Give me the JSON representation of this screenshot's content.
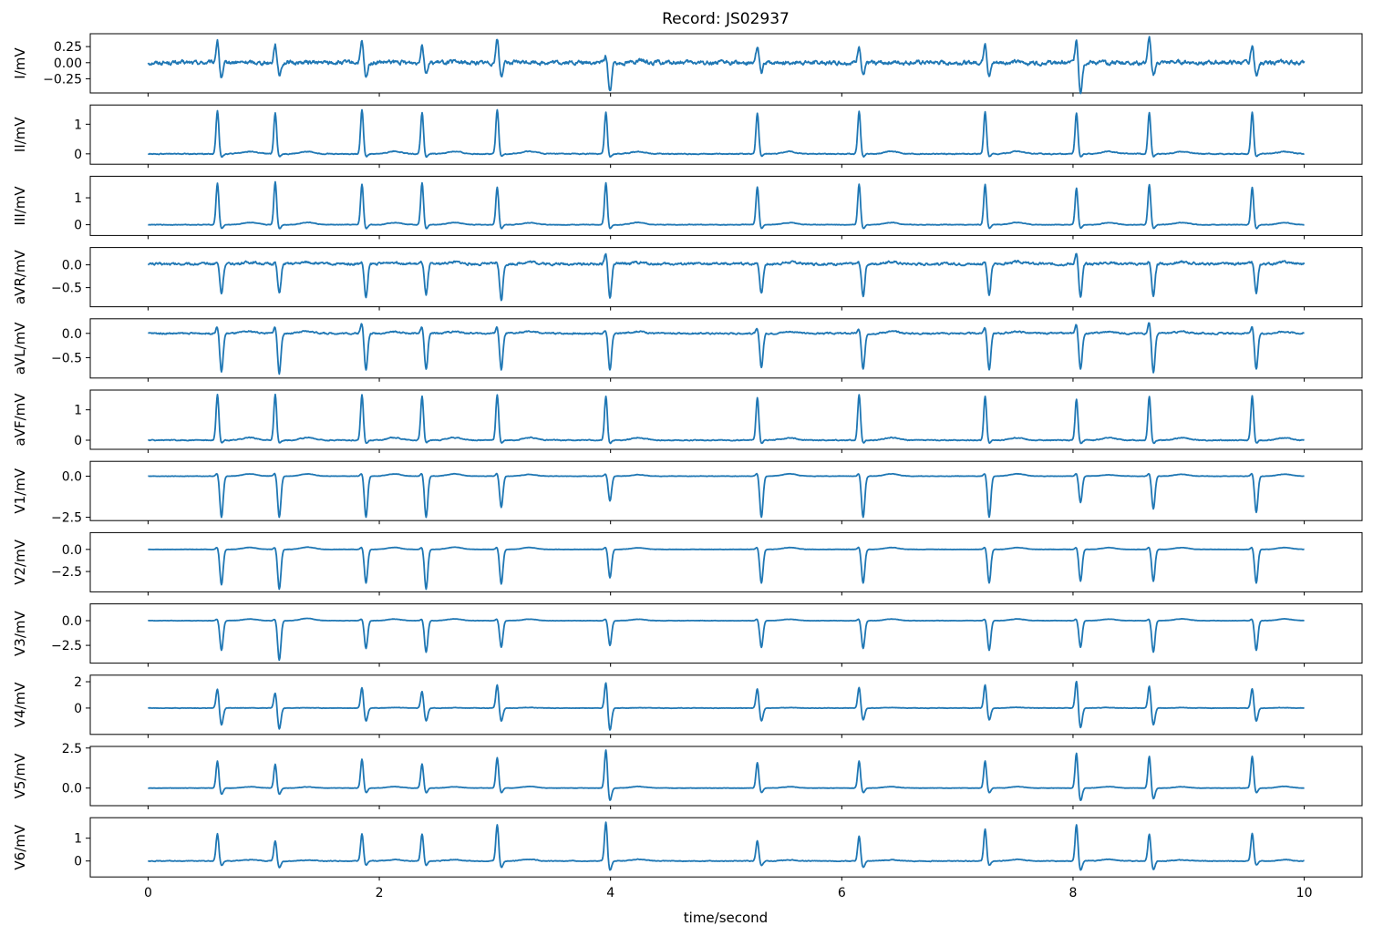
{
  "title": "Record: JS02937",
  "xlabel": "time/second",
  "xticks": [
    0,
    2,
    4,
    6,
    8,
    10
  ],
  "xlim": [
    -0.5,
    10.5
  ],
  "line_color": "#1f77b4",
  "beats": [
    0.6,
    1.1,
    1.85,
    2.37,
    3.02,
    3.96,
    5.27,
    6.15,
    7.24,
    8.03,
    8.66,
    9.55
  ],
  "chart_data": {
    "type": "line",
    "x_range": [
      0,
      10
    ],
    "sampling_note": "12-lead ECG",
    "series": [
      {
        "name": "I/mV",
        "ylabel": "I/mV",
        "ylim": [
          -0.47,
          0.45
        ],
        "yticks": [
          0.25,
          0.0,
          -0.25
        ],
        "ytick_labels": [
          "0.25",
          "0.00",
          "−0.25"
        ],
        "baseline": 0.0,
        "noise": 0.06,
        "peaks": [
          0.35,
          0.3,
          0.33,
          0.3,
          0.38,
          0.12,
          0.25,
          0.28,
          0.33,
          0.38,
          0.4,
          0.28
        ],
        "troughs": [
          -0.25,
          -0.2,
          -0.25,
          -0.15,
          -0.2,
          -0.45,
          -0.15,
          -0.2,
          -0.22,
          -0.45,
          -0.2,
          -0.2
        ]
      },
      {
        "name": "II/mV",
        "ylabel": "II/mV",
        "ylim": [
          -0.35,
          1.65
        ],
        "yticks": [
          1,
          0
        ],
        "ytick_labels": [
          "1",
          "0"
        ],
        "baseline": 0.0,
        "noise": 0.03,
        "peaks": [
          1.45,
          1.4,
          1.5,
          1.4,
          1.5,
          1.4,
          1.38,
          1.45,
          1.42,
          1.38,
          1.4,
          1.42
        ],
        "troughs": [
          -0.1,
          -0.1,
          -0.1,
          -0.1,
          -0.1,
          -0.1,
          -0.1,
          -0.1,
          -0.1,
          -0.1,
          -0.1,
          -0.1
        ]
      },
      {
        "name": "III/mV",
        "ylabel": "III/mV",
        "ylim": [
          -0.4,
          1.8
        ],
        "yticks": [
          1,
          0
        ],
        "ytick_labels": [
          "1",
          "0"
        ],
        "baseline": 0.0,
        "noise": 0.02,
        "peaks": [
          1.55,
          1.6,
          1.5,
          1.55,
          1.4,
          1.55,
          1.4,
          1.5,
          1.5,
          1.35,
          1.5,
          1.4
        ],
        "troughs": [
          -0.15,
          -0.15,
          -0.15,
          -0.15,
          -0.15,
          -0.15,
          -0.15,
          -0.15,
          -0.15,
          -0.15,
          -0.15,
          -0.15
        ]
      },
      {
        "name": "aVR/mV",
        "ylabel": "aVR/mV",
        "ylim": [
          -0.92,
          0.38
        ],
        "yticks": [
          0.0,
          -0.5
        ],
        "ytick_labels": [
          "0.0",
          "−0.5"
        ],
        "baseline": 0.02,
        "noise": 0.05,
        "peaks": [
          0.05,
          0.05,
          0.05,
          0.05,
          0.05,
          0.25,
          0.05,
          0.05,
          0.05,
          0.25,
          0.05,
          0.05
        ],
        "troughs": [
          -0.65,
          -0.65,
          -0.75,
          -0.7,
          -0.8,
          -0.75,
          -0.65,
          -0.7,
          -0.7,
          -0.75,
          -0.7,
          -0.65
        ]
      },
      {
        "name": "aVL/mV",
        "ylabel": "aVL/mV",
        "ylim": [
          -0.92,
          0.3
        ],
        "yticks": [
          0.0,
          -0.5
        ],
        "ytick_labels": [
          "0.0",
          "−0.5"
        ],
        "baseline": 0.0,
        "noise": 0.03,
        "peaks": [
          0.15,
          0.15,
          0.22,
          0.15,
          0.15,
          0.05,
          0.1,
          0.1,
          0.15,
          0.2,
          0.25,
          0.15
        ],
        "troughs": [
          -0.8,
          -0.82,
          -0.75,
          -0.75,
          -0.75,
          -0.75,
          -0.7,
          -0.75,
          -0.75,
          -0.75,
          -0.82,
          -0.75
        ]
      },
      {
        "name": "aVF/mV",
        "ylabel": "aVF/mV",
        "ylim": [
          -0.3,
          1.65
        ],
        "yticks": [
          1,
          0
        ],
        "ytick_labels": [
          "1",
          "0"
        ],
        "baseline": 0.0,
        "noise": 0.03,
        "peaks": [
          1.5,
          1.5,
          1.5,
          1.45,
          1.5,
          1.45,
          1.4,
          1.5,
          1.45,
          1.35,
          1.45,
          1.45
        ],
        "troughs": [
          -0.1,
          -0.1,
          -0.1,
          -0.1,
          -0.1,
          -0.1,
          -0.1,
          -0.1,
          -0.1,
          -0.1,
          -0.1,
          -0.1
        ]
      },
      {
        "name": "V1/mV",
        "ylabel": "V1/mV",
        "ylim": [
          -2.7,
          0.9
        ],
        "yticks": [
          0.0,
          -2.5
        ],
        "ytick_labels": [
          "0.0",
          "−2.5"
        ],
        "baseline": 0.0,
        "noise": 0.02,
        "peaks": [
          0.2,
          0.2,
          0.2,
          0.2,
          0.2,
          0.15,
          0.2,
          0.2,
          0.2,
          0.2,
          0.2,
          0.2
        ],
        "troughs": [
          -2.5,
          -2.5,
          -2.5,
          -2.5,
          -1.9,
          -1.5,
          -2.5,
          -2.5,
          -2.5,
          -1.6,
          -2.0,
          -2.2
        ]
      },
      {
        "name": "V2/mV",
        "ylabel": "V2/mV",
        "ylim": [
          -4.8,
          1.9
        ],
        "yticks": [
          0.0,
          -2.5
        ],
        "ytick_labels": [
          "0.0",
          "−2.5"
        ],
        "baseline": 0.0,
        "noise": 0.03,
        "peaks": [
          0.3,
          0.3,
          0.3,
          0.3,
          0.3,
          0.3,
          0.3,
          0.3,
          0.3,
          0.3,
          0.3,
          0.3
        ],
        "troughs": [
          -4.0,
          -4.5,
          -3.8,
          -4.5,
          -3.9,
          -3.2,
          -3.8,
          -3.8,
          -3.8,
          -3.6,
          -3.6,
          -3.8
        ]
      },
      {
        "name": "V3/mV",
        "ylabel": "V3/mV",
        "ylim": [
          -4.3,
          1.7
        ],
        "yticks": [
          0.0,
          -2.5
        ],
        "ytick_labels": [
          "0.0",
          "−2.5"
        ],
        "baseline": 0.0,
        "noise": 0.03,
        "peaks": [
          0.2,
          0.2,
          0.2,
          0.2,
          0.2,
          0.2,
          0.2,
          0.2,
          0.2,
          0.2,
          0.2,
          0.2
        ],
        "troughs": [
          -3.0,
          -4.0,
          -2.8,
          -3.2,
          -2.7,
          -2.5,
          -2.7,
          -2.8,
          -3.0,
          -2.7,
          -3.2,
          -3.0
        ]
      },
      {
        "name": "V4/mV",
        "ylabel": "V4/mV",
        "ylim": [
          -2.0,
          2.5
        ],
        "yticks": [
          2,
          0
        ],
        "ytick_labels": [
          "2",
          "0"
        ],
        "baseline": 0.0,
        "noise": 0.03,
        "peaks": [
          1.5,
          1.2,
          1.6,
          1.3,
          1.8,
          2.0,
          1.5,
          1.6,
          1.8,
          2.1,
          1.7,
          1.5
        ],
        "troughs": [
          -1.3,
          -1.6,
          -1.0,
          -1.0,
          -1.0,
          -1.7,
          -1.0,
          -0.9,
          -0.9,
          -1.5,
          -1.3,
          -1.0
        ]
      },
      {
        "name": "V5/mV",
        "ylabel": "V5/mV",
        "ylim": [
          -1.1,
          2.6
        ],
        "yticks": [
          2.5,
          0.0
        ],
        "ytick_labels": [
          "2.5",
          "0.0"
        ],
        "baseline": 0.0,
        "noise": 0.02,
        "peaks": [
          1.7,
          1.5,
          1.8,
          1.5,
          1.9,
          2.4,
          1.6,
          1.7,
          1.7,
          2.2,
          2.0,
          2.0
        ],
        "troughs": [
          -0.4,
          -0.4,
          -0.3,
          -0.3,
          -0.3,
          -0.8,
          -0.3,
          -0.3,
          -0.3,
          -0.8,
          -0.7,
          -0.3
        ]
      },
      {
        "name": "V6/mV",
        "ylabel": "V6/mV",
        "ylim": [
          -0.7,
          1.9
        ],
        "yticks": [
          1,
          0
        ],
        "ytick_labels": [
          "1",
          "0"
        ],
        "baseline": 0.0,
        "noise": 0.03,
        "peaks": [
          1.2,
          0.9,
          1.2,
          1.2,
          1.6,
          1.7,
          0.9,
          1.1,
          1.4,
          1.6,
          1.2,
          1.2
        ],
        "troughs": [
          -0.2,
          -0.3,
          -0.2,
          -0.2,
          -0.3,
          -0.4,
          -0.2,
          -0.3,
          -0.2,
          -0.4,
          -0.4,
          -0.2
        ]
      }
    ]
  }
}
